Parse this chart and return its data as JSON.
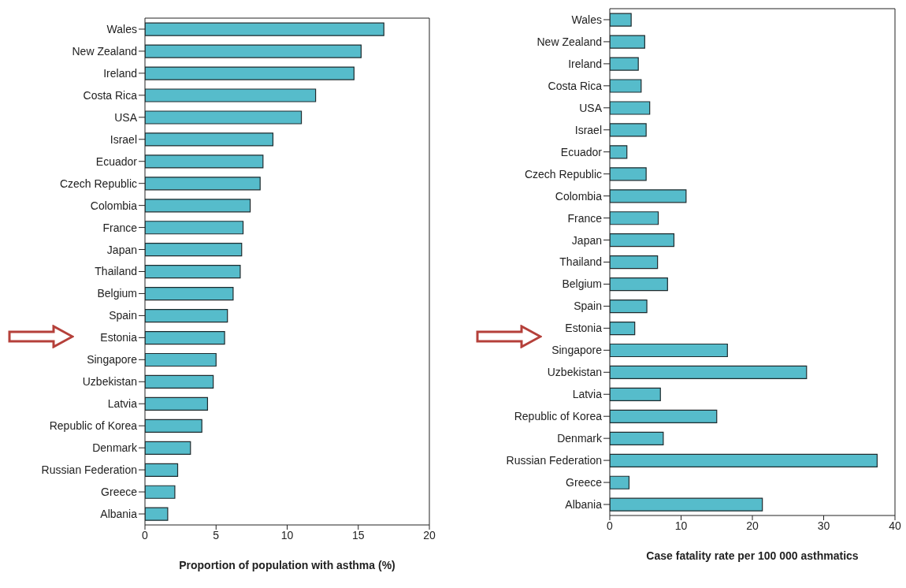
{
  "chart_data": [
    {
      "type": "bar",
      "orientation": "horizontal",
      "xlabel": "Proportion of population with asthma (%)",
      "categories": [
        "Wales",
        "New Zealand",
        "Ireland",
        "Costa Rica",
        "USA",
        "Israel",
        "Ecuador",
        "Czech Republic",
        "Colombia",
        "France",
        "Japan",
        "Thailand",
        "Belgium",
        "Spain",
        "Estonia",
        "Singapore",
        "Uzbekistan",
        "Latvia",
        "Republic of Korea",
        "Denmark",
        "Russian Federation",
        "Greece",
        "Albania"
      ],
      "values": [
        16.8,
        15.2,
        14.7,
        12.0,
        11.0,
        9.0,
        8.3,
        8.1,
        7.4,
        6.9,
        6.8,
        6.7,
        6.2,
        5.8,
        5.6,
        5.0,
        4.8,
        4.4,
        4.0,
        3.2,
        2.3,
        2.1,
        1.6
      ],
      "color": "#56bccb",
      "xlim": [
        0,
        20
      ],
      "xticks": [
        0,
        5,
        10,
        15,
        20
      ],
      "grid": false,
      "legend": false
    },
    {
      "type": "bar",
      "orientation": "horizontal",
      "xlabel": "Case fatality rate per 100 000 asthmatics",
      "categories": [
        "Wales",
        "New Zealand",
        "Ireland",
        "Costa Rica",
        "USA",
        "Israel",
        "Ecuador",
        "Czech Republic",
        "Colombia",
        "France",
        "Japan",
        "Thailand",
        "Belgium",
        "Spain",
        "Estonia",
        "Singapore",
        "Uzbekistan",
        "Latvia",
        "Republic of Korea",
        "Denmark",
        "Russian Federation",
        "Greece",
        "Albania"
      ],
      "values": [
        3.0,
        4.9,
        4.0,
        4.4,
        5.6,
        5.1,
        2.4,
        5.1,
        10.7,
        6.8,
        9.0,
        6.7,
        8.1,
        5.2,
        3.5,
        16.5,
        27.6,
        7.1,
        15.0,
        7.5,
        37.5,
        2.7,
        21.4
      ],
      "color": "#56bccb",
      "xlim": [
        0,
        40
      ],
      "xticks": [
        0,
        10,
        20,
        30,
        40
      ],
      "grid": false,
      "legend": false
    }
  ]
}
